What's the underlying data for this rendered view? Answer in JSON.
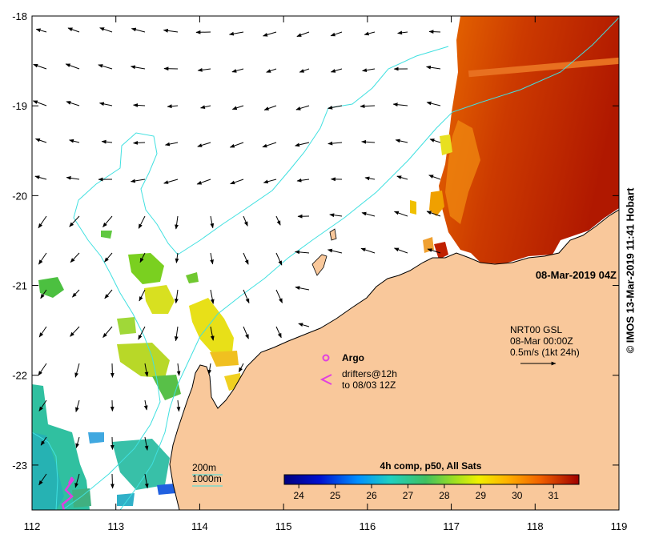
{
  "map": {
    "timestamp": "08-Mar-2019 04Z",
    "credit": "© IMOS 13-Mar-2019 11:41 Hobart",
    "lat_ticks": [
      "-18",
      "-19",
      "-20",
      "-21",
      "-22",
      "-23"
    ],
    "lon_ticks": [
      "112",
      "113",
      "114",
      "115",
      "116",
      "117",
      "118",
      "119"
    ],
    "extent": {
      "lon": [
        112,
        119
      ],
      "lat": [
        -23.5,
        -18
      ]
    }
  },
  "legend": {
    "argo_label": "Argo",
    "drifters_line1": "drifters@12h",
    "drifters_line2": "to 08/03 12Z",
    "current_source": "NRT00 GSL",
    "current_time": "08-Mar 00:00Z",
    "current_scale": "0.5m/s (1kt 24h)",
    "contour_200": "200m",
    "contour_1000": "1000m"
  },
  "colorbar": {
    "title": "4h comp, p50, All Sats",
    "ticks": [
      "24",
      "25",
      "26",
      "27",
      "28",
      "29",
      "30",
      "31"
    ],
    "min": 23.6,
    "max": 31.7
  },
  "colors": {
    "land": "#f9c89b",
    "contour": "#40e0e0",
    "argo": "#e040e0",
    "sst_hot": "#b81800"
  }
}
